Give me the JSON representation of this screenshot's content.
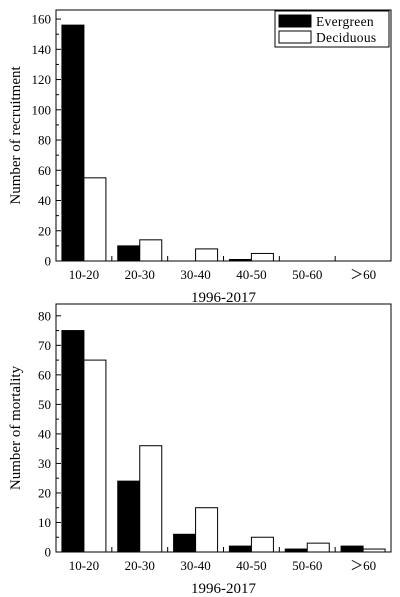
{
  "chart_data": [
    {
      "type": "bar",
      "categories": [
        "10-20",
        "20-30",
        "30-40",
        "40-50",
        "50-60",
        "＞60"
      ],
      "series": [
        {
          "name": "Evergreen",
          "values": [
            156,
            10,
            0,
            1,
            0,
            0
          ],
          "color": "#000000"
        },
        {
          "name": "Deciduous",
          "values": [
            55,
            14,
            8,
            5,
            0,
            0
          ],
          "color": "#ffffff"
        }
      ],
      "xlabel": "1996-2017",
      "ylabel": "Number of recruitment",
      "ylim": [
        0,
        166
      ],
      "yticks": [
        0,
        20,
        40,
        60,
        80,
        100,
        120,
        140,
        160
      ],
      "legend": "top-right",
      "grid": false
    },
    {
      "type": "bar",
      "categories": [
        "10-20",
        "20-30",
        "30-40",
        "40-50",
        "50-60",
        "＞60"
      ],
      "series": [
        {
          "name": "Evergreen",
          "values": [
            75,
            24,
            6,
            2,
            1,
            2
          ],
          "color": "#000000"
        },
        {
          "name": "Deciduous",
          "values": [
            65,
            36,
            15,
            5,
            3,
            1
          ],
          "color": "#ffffff"
        }
      ],
      "xlabel": "1996-2017",
      "ylabel": "Number of mortality",
      "ylim": [
        0,
        84
      ],
      "yticks": [
        0,
        10,
        20,
        30,
        40,
        50,
        60,
        70,
        80
      ],
      "legend": "none",
      "grid": false
    }
  ]
}
